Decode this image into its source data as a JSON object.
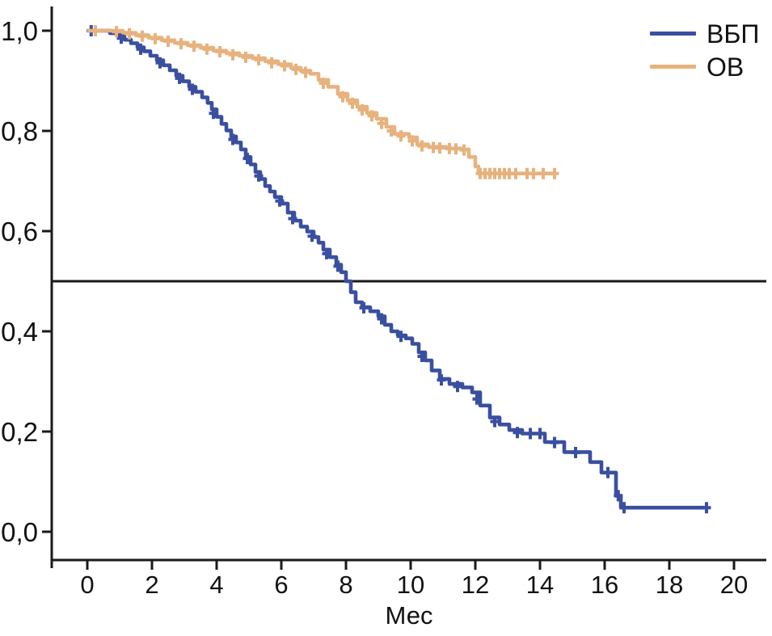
{
  "page": {
    "background": "#ffffff"
  },
  "legend": {
    "items": [
      {
        "label": "ВБП",
        "color": "#3a4fa0"
      },
      {
        "label": "ОВ",
        "color": "#e7b27e"
      }
    ]
  },
  "chart_data": {
    "type": "line",
    "subtype": "kaplan-meier-step",
    "title": "",
    "xlabel": "Мес",
    "ylabel": "",
    "xlim": [
      -1.1,
      21
    ],
    "ylim": [
      0.0,
      1.05
    ],
    "grid": false,
    "legend_position": "top-right",
    "axis_color": "#1a1a1a",
    "reference_line_y": 0.5,
    "x_ticks": [
      0,
      2,
      4,
      6,
      8,
      10,
      12,
      14,
      16,
      18,
      20
    ],
    "x_tick_labels": [
      "0",
      "2",
      "4",
      "6",
      "8",
      "10",
      "12",
      "14",
      "16",
      "18",
      "20"
    ],
    "y_ticks": [
      1.0,
      0.8,
      0.6,
      0.4,
      0.2,
      0.0
    ],
    "y_tick_labels": [
      "1,0",
      "0,8",
      "0,6",
      "0,4",
      "0,2",
      "0,0"
    ],
    "series": [
      {
        "name": "ВБП",
        "color": "#3a4fa0",
        "steps": [
          [
            0,
            1.0
          ],
          [
            0.35,
            1.0
          ],
          [
            0.7,
            0.995
          ],
          [
            0.95,
            0.989
          ],
          [
            1.15,
            0.982
          ],
          [
            1.35,
            0.975
          ],
          [
            1.55,
            0.967
          ],
          [
            1.75,
            0.959
          ],
          [
            1.95,
            0.95
          ],
          [
            2.15,
            0.941
          ],
          [
            2.35,
            0.931
          ],
          [
            2.55,
            0.921
          ],
          [
            2.75,
            0.91
          ],
          [
            2.95,
            0.899
          ],
          [
            3.15,
            0.888
          ],
          [
            3.35,
            0.878
          ],
          [
            3.55,
            0.867
          ],
          [
            3.72,
            0.856
          ],
          [
            3.85,
            0.843
          ],
          [
            4.0,
            0.828
          ],
          [
            4.15,
            0.814
          ],
          [
            4.3,
            0.801
          ],
          [
            4.45,
            0.789
          ],
          [
            4.6,
            0.777
          ],
          [
            4.75,
            0.763
          ],
          [
            4.9,
            0.748
          ],
          [
            5.05,
            0.733
          ],
          [
            5.2,
            0.718
          ],
          [
            5.35,
            0.704
          ],
          [
            5.5,
            0.69
          ],
          [
            5.65,
            0.679
          ],
          [
            5.8,
            0.668
          ],
          [
            6.0,
            0.655
          ],
          [
            6.2,
            0.637
          ],
          [
            6.4,
            0.621
          ],
          [
            6.6,
            0.609
          ],
          [
            6.8,
            0.599
          ],
          [
            7.0,
            0.588
          ],
          [
            7.15,
            0.577
          ],
          [
            7.3,
            0.563
          ],
          [
            7.5,
            0.548
          ],
          [
            7.7,
            0.533
          ],
          [
            7.85,
            0.518
          ],
          [
            8.0,
            0.5
          ],
          [
            8.15,
            0.478
          ],
          [
            8.3,
            0.458
          ],
          [
            8.5,
            0.448
          ],
          [
            8.75,
            0.44
          ],
          [
            9.0,
            0.43
          ],
          [
            9.2,
            0.413
          ],
          [
            9.4,
            0.4
          ],
          [
            9.6,
            0.392
          ],
          [
            9.85,
            0.386
          ],
          [
            10.05,
            0.375
          ],
          [
            10.25,
            0.358
          ],
          [
            10.45,
            0.342
          ],
          [
            10.65,
            0.322
          ],
          [
            10.9,
            0.305
          ],
          [
            11.2,
            0.295
          ],
          [
            11.6,
            0.288
          ],
          [
            11.9,
            0.278
          ],
          [
            12.15,
            0.252
          ],
          [
            12.45,
            0.228
          ],
          [
            12.75,
            0.214
          ],
          [
            13.05,
            0.203
          ],
          [
            13.45,
            0.196
          ],
          [
            14.15,
            0.179
          ],
          [
            14.75,
            0.159
          ],
          [
            15.55,
            0.139
          ],
          [
            15.9,
            0.118
          ],
          [
            16.35,
            0.072
          ],
          [
            16.5,
            0.048
          ],
          [
            19.2,
            0.048
          ]
        ],
        "censors": [
          [
            0.12,
            1.0
          ],
          [
            1.05,
            0.985
          ],
          [
            1.65,
            0.963
          ],
          [
            2.25,
            0.936
          ],
          [
            2.85,
            0.905
          ],
          [
            3.25,
            0.883
          ],
          [
            3.9,
            0.835
          ],
          [
            4.5,
            0.783
          ],
          [
            4.95,
            0.745
          ],
          [
            5.3,
            0.71
          ],
          [
            5.95,
            0.66
          ],
          [
            6.35,
            0.625
          ],
          [
            6.95,
            0.59
          ],
          [
            7.4,
            0.555
          ],
          [
            7.75,
            0.53
          ],
          [
            8.55,
            0.447
          ],
          [
            9.1,
            0.425
          ],
          [
            9.7,
            0.39
          ],
          [
            10.35,
            0.35
          ],
          [
            10.95,
            0.303
          ],
          [
            11.45,
            0.29
          ],
          [
            12.05,
            0.265
          ],
          [
            12.6,
            0.22
          ],
          [
            13.3,
            0.198
          ],
          [
            13.7,
            0.196
          ],
          [
            14.0,
            0.196
          ],
          [
            14.45,
            0.178
          ],
          [
            15.1,
            0.158
          ],
          [
            16.1,
            0.118
          ],
          [
            16.42,
            0.072
          ],
          [
            16.6,
            0.048
          ],
          [
            19.15,
            0.048
          ]
        ]
      },
      {
        "name": "ОВ",
        "color": "#e7b27e",
        "steps": [
          [
            0,
            1.0
          ],
          [
            0.7,
            1.0
          ],
          [
            1.1,
            0.996
          ],
          [
            1.5,
            0.991
          ],
          [
            1.9,
            0.986
          ],
          [
            2.3,
            0.981
          ],
          [
            2.7,
            0.976
          ],
          [
            3.1,
            0.971
          ],
          [
            3.5,
            0.966
          ],
          [
            3.9,
            0.96
          ],
          [
            4.3,
            0.955
          ],
          [
            4.7,
            0.95
          ],
          [
            5.1,
            0.945
          ],
          [
            5.5,
            0.939
          ],
          [
            5.9,
            0.933
          ],
          [
            6.3,
            0.926
          ],
          [
            6.6,
            0.92
          ],
          [
            6.9,
            0.914
          ],
          [
            7.15,
            0.902
          ],
          [
            7.45,
            0.888
          ],
          [
            7.75,
            0.874
          ],
          [
            8.05,
            0.861
          ],
          [
            8.35,
            0.848
          ],
          [
            8.65,
            0.836
          ],
          [
            8.95,
            0.824
          ],
          [
            9.25,
            0.808
          ],
          [
            9.5,
            0.794
          ],
          [
            9.95,
            0.787
          ],
          [
            10.2,
            0.773
          ],
          [
            10.55,
            0.768
          ],
          [
            11.1,
            0.765
          ],
          [
            11.55,
            0.763
          ],
          [
            11.8,
            0.748
          ],
          [
            12.0,
            0.729
          ],
          [
            12.1,
            0.715
          ],
          [
            14.45,
            0.715
          ]
        ],
        "censors": [
          [
            0.25,
            1.0
          ],
          [
            0.9,
            0.998
          ],
          [
            1.3,
            0.994
          ],
          [
            1.7,
            0.989
          ],
          [
            2.1,
            0.984
          ],
          [
            2.5,
            0.979
          ],
          [
            2.9,
            0.974
          ],
          [
            3.3,
            0.969
          ],
          [
            3.7,
            0.963
          ],
          [
            4.1,
            0.958
          ],
          [
            4.5,
            0.952
          ],
          [
            4.9,
            0.947
          ],
          [
            5.3,
            0.942
          ],
          [
            5.7,
            0.936
          ],
          [
            6.1,
            0.93
          ],
          [
            6.45,
            0.923
          ],
          [
            6.75,
            0.917
          ],
          [
            7.3,
            0.895
          ],
          [
            7.9,
            0.868
          ],
          [
            8.2,
            0.855
          ],
          [
            8.5,
            0.842
          ],
          [
            8.8,
            0.83
          ],
          [
            9.1,
            0.815
          ],
          [
            9.4,
            0.8
          ],
          [
            9.7,
            0.79
          ],
          [
            10.05,
            0.78
          ],
          [
            10.35,
            0.77
          ],
          [
            10.7,
            0.767
          ],
          [
            10.9,
            0.766
          ],
          [
            11.2,
            0.765
          ],
          [
            11.4,
            0.764
          ],
          [
            11.65,
            0.762
          ],
          [
            12.15,
            0.715
          ],
          [
            12.3,
            0.715
          ],
          [
            12.45,
            0.715
          ],
          [
            12.6,
            0.715
          ],
          [
            12.75,
            0.715
          ],
          [
            12.9,
            0.715
          ],
          [
            13.05,
            0.715
          ],
          [
            13.25,
            0.715
          ],
          [
            13.6,
            0.715
          ],
          [
            13.8,
            0.715
          ],
          [
            14.1,
            0.715
          ],
          [
            14.45,
            0.715
          ]
        ]
      }
    ]
  }
}
